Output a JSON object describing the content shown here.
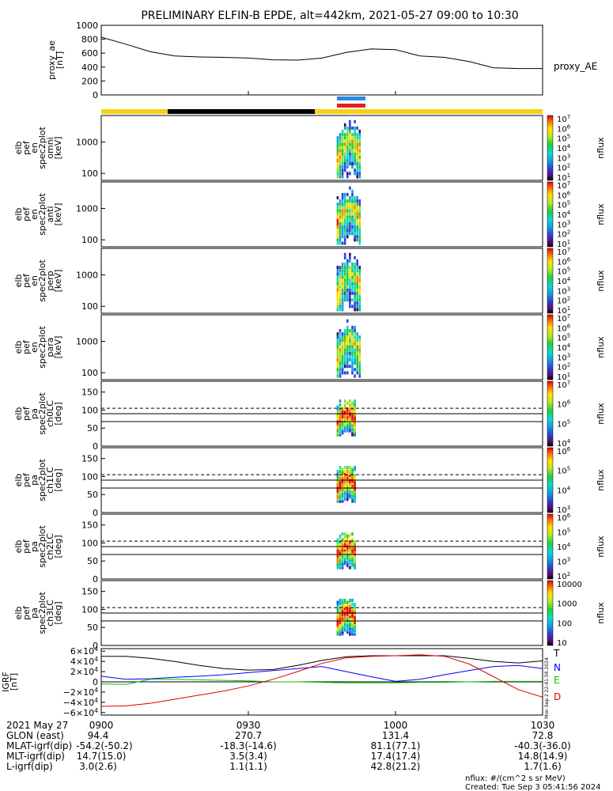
{
  "title": "PRELIMINARY ELFIN-B EPDE, alt=442km, 2021-05-27 09:00 to 10:30",
  "colors": {
    "sunlight": "#f2d21a",
    "shadow": "#000000",
    "science_blue": "#2a8ae0",
    "science_red": "#e02020"
  },
  "chart_data": [
    {
      "type": "line",
      "panel": "ae",
      "ylabel": "proxy_ae [nT]",
      "ylim": [
        0,
        1000
      ],
      "yticks": [
        "1000",
        "800",
        "600",
        "400",
        "200",
        "0"
      ],
      "legend": "proxy_AE",
      "x": [
        900,
        905,
        910,
        915,
        920,
        925,
        930,
        935,
        940,
        945,
        950,
        955,
        1000,
        1005,
        1010,
        1015,
        1020,
        1025,
        1030
      ],
      "values": [
        830,
        730,
        620,
        560,
        545,
        540,
        530,
        505,
        500,
        530,
        610,
        660,
        650,
        560,
        540,
        480,
        390,
        380,
        380
      ]
    },
    {
      "type": "heatmap",
      "panel": "en_spec2plot_omni",
      "ylabel_lines": [
        "elb",
        "pef",
        "en",
        "spec2plot",
        "omni",
        "[keV]"
      ],
      "yscale": "log",
      "ylim": [
        60,
        7000
      ],
      "yticks": [
        "1000",
        "100"
      ],
      "colorbar": {
        "label": "nflux",
        "scale": "log",
        "ticks": [
          "10^7",
          "10^6",
          "10^5",
          "10^4",
          "10^3",
          "10^2",
          "10^1"
        ]
      },
      "active_interval": [
        "0948",
        "0953"
      ]
    },
    {
      "type": "heatmap",
      "panel": "en_spec2plot_anti",
      "ylabel_lines": [
        "elb",
        "pef",
        "en",
        "spec2plot",
        "anti",
        "[keV]"
      ],
      "yscale": "log",
      "ylim": [
        60,
        7000
      ],
      "yticks": [
        "1000",
        "100"
      ],
      "colorbar": {
        "label": "nflux",
        "scale": "log",
        "ticks": [
          "10^7",
          "10^6",
          "10^5",
          "10^4",
          "10^3",
          "10^2",
          "10^1"
        ]
      },
      "active_interval": [
        "0948",
        "0953"
      ]
    },
    {
      "type": "heatmap",
      "panel": "en_spec2plot_perp",
      "ylabel_lines": [
        "elb",
        "pef",
        "en",
        "spec2plot",
        "perp",
        "[keV]"
      ],
      "yscale": "log",
      "ylim": [
        60,
        7000
      ],
      "yticks": [
        "1000",
        "100"
      ],
      "colorbar": {
        "label": "nflux",
        "scale": "log",
        "ticks": [
          "10^7",
          "10^6",
          "10^5",
          "10^4",
          "10^3",
          "10^2",
          "10^1"
        ]
      },
      "active_interval": [
        "0948",
        "0953"
      ]
    },
    {
      "type": "heatmap",
      "panel": "en_spec2plot_para",
      "ylabel_lines": [
        "elb",
        "pef",
        "en",
        "spec2plot",
        "para",
        "[keV]"
      ],
      "yscale": "log",
      "ylim": [
        60,
        7000
      ],
      "yticks": [
        "1000",
        "100"
      ],
      "colorbar": {
        "label": "nflux",
        "scale": "log",
        "ticks": [
          "10^7",
          "10^6",
          "10^5",
          "10^4",
          "10^3",
          "10^2",
          "10^1"
        ]
      },
      "active_interval": [
        "0948",
        "0953"
      ]
    },
    {
      "type": "heatmap",
      "panel": "pa_spec2plot_ch0LC",
      "ylabel_lines": [
        "elb",
        "pef",
        "pa",
        "spec2plot",
        "ch0LC",
        "[deg]"
      ],
      "ylim": [
        0,
        180
      ],
      "yticks": [
        "150",
        "100",
        "50",
        "0"
      ],
      "reference_lines": [
        90,
        68
      ],
      "dashed_level": 105,
      "colorbar": {
        "label": "nflux",
        "scale": "log",
        "ticks": [
          "10^7",
          "10^6",
          "10^5",
          "10^4"
        ]
      },
      "active_interval": [
        "0948",
        "0952"
      ]
    },
    {
      "type": "heatmap",
      "panel": "pa_spec2plot_ch1LC",
      "ylabel_lines": [
        "elb",
        "pef",
        "pa",
        "spec2plot",
        "ch1LC",
        "[deg]"
      ],
      "ylim": [
        0,
        180
      ],
      "yticks": [
        "150",
        "100",
        "50",
        "0"
      ],
      "reference_lines": [
        90,
        68
      ],
      "dashed_level": 105,
      "colorbar": {
        "label": "nflux",
        "scale": "log",
        "ticks": [
          "10^6",
          "10^5",
          "10^4",
          "10^3"
        ]
      },
      "active_interval": [
        "0948",
        "0952"
      ]
    },
    {
      "type": "heatmap",
      "panel": "pa_spec2plot_ch2LC",
      "ylabel_lines": [
        "elb",
        "pef",
        "pa",
        "spec2plot",
        "ch2LC",
        "[deg]"
      ],
      "ylim": [
        0,
        180
      ],
      "yticks": [
        "150",
        "100",
        "50",
        "0"
      ],
      "reference_lines": [
        90,
        68
      ],
      "dashed_level": 105,
      "colorbar": {
        "label": "nflux",
        "scale": "log",
        "ticks": [
          "10^6",
          "10^5",
          "10^4",
          "10^3",
          "10^2"
        ]
      },
      "active_interval": [
        "0948",
        "0952"
      ]
    },
    {
      "type": "heatmap",
      "panel": "pa_spec2plot_ch3LC",
      "ylabel_lines": [
        "elb",
        "pef",
        "pa",
        "spec2plot",
        "ch3LC",
        "[deg]"
      ],
      "ylim": [
        0,
        180
      ],
      "yticks": [
        "150",
        "100",
        "50",
        "0"
      ],
      "reference_lines": [
        90,
        68
      ],
      "dashed_level": 105,
      "colorbar": {
        "label": "nflux",
        "scale": "log",
        "ticks": [
          "10000",
          "1000",
          "100",
          "10"
        ]
      },
      "active_interval": [
        "0948",
        "0952"
      ]
    },
    {
      "type": "line",
      "panel": "igrf",
      "ylabel": "IGRF [nT]",
      "ylim": [
        -65000,
        65000
      ],
      "yticks": [
        "6×10^4",
        "4×10^4",
        "2×10^4",
        "0",
        "−2×10^4",
        "−4×10^4",
        "−6×10^4"
      ],
      "x": [
        900,
        905,
        910,
        915,
        920,
        925,
        930,
        935,
        940,
        945,
        950,
        955,
        1000,
        1005,
        1010,
        1015,
        1020,
        1025,
        1030
      ],
      "series": [
        {
          "name": "T",
          "color": "#000000",
          "values": [
            50000,
            50000,
            46000,
            40000,
            32000,
            26000,
            23000,
            24000,
            32000,
            42000,
            49000,
            51000,
            51000,
            51000,
            51000,
            46000,
            40000,
            37000,
            41000
          ]
        },
        {
          "name": "N",
          "color": "#0000ff",
          "values": [
            11000,
            5000,
            6000,
            9000,
            11000,
            14000,
            18000,
            22000,
            26000,
            30000,
            20000,
            10000,
            1000,
            5000,
            14000,
            22000,
            30000,
            32000,
            26000
          ]
        },
        {
          "name": "E",
          "color": "#00c800",
          "values": [
            -4000,
            -5000,
            5000,
            5000,
            4000,
            3000,
            2000,
            0,
            0,
            -1000,
            -2000,
            -2000,
            -2000,
            -1000,
            -1000,
            0,
            1000,
            1000,
            1000
          ]
        },
        {
          "name": "D",
          "color": "#e00000",
          "values": [
            -48000,
            -47000,
            -42000,
            -34000,
            -26000,
            -18000,
            -8000,
            5000,
            20000,
            36000,
            47000,
            50000,
            51000,
            53000,
            50000,
            35000,
            10000,
            -15000,
            -30000
          ]
        }
      ]
    }
  ],
  "xaxis": {
    "rows": [
      {
        "label": "2021 May 27",
        "values": [
          "0900",
          "0930",
          "1000",
          "1030"
        ]
      },
      {
        "label": "GLON (east)",
        "values": [
          "94.4",
          "270.7",
          "131.4",
          "72.8"
        ]
      },
      {
        "label": "MLAT-igrf(dip)",
        "values": [
          "-54.2(-50.2)",
          "-18.3(-14.6)",
          "81.1(77.1)",
          "-40.3(-36.0)"
        ]
      },
      {
        "label": "MLT-igrf(dip)",
        "values": [
          "14.7(15.0)",
          "3.5(3.4)",
          "17.4(17.4)",
          "14.8(14.9)"
        ]
      },
      {
        "label": "L-igrf(dip)",
        "values": [
          "3.0(2.6)",
          "1.1(1.1)",
          "42.8(21.2)",
          "1.7(1.6)"
        ]
      }
    ]
  },
  "footer": {
    "units": "nflux: #/(cm^2 s sr MeV)",
    "created": "Created: Tue Sep  3 05:41:56 2024",
    "side_stamp": "Mon Sep  2 22:41:56 2024"
  }
}
